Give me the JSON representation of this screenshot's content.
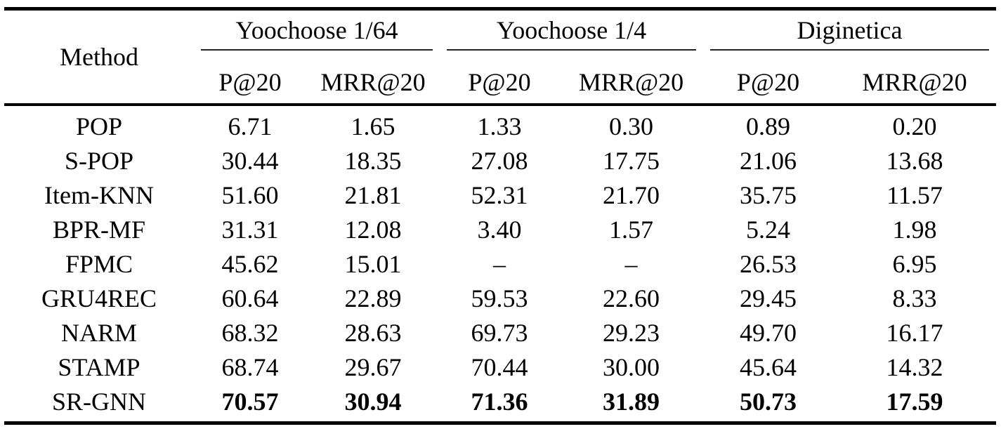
{
  "table": {
    "method_header": "Method",
    "groups": [
      {
        "label": "Yoochoose 1/64"
      },
      {
        "label": "Yoochoose 1/4"
      },
      {
        "label": "Diginetica"
      }
    ],
    "metric_headers": [
      "P@20",
      "MRR@20",
      "P@20",
      "MRR@20",
      "P@20",
      "MRR@20"
    ],
    "rows": [
      {
        "method": "POP",
        "values": [
          "6.71",
          "1.65",
          "1.33",
          "0.30",
          "0.89",
          "0.20"
        ],
        "bold": false
      },
      {
        "method": "S-POP",
        "values": [
          "30.44",
          "18.35",
          "27.08",
          "17.75",
          "21.06",
          "13.68"
        ],
        "bold": false
      },
      {
        "method": "Item-KNN",
        "values": [
          "51.60",
          "21.81",
          "52.31",
          "21.70",
          "35.75",
          "11.57"
        ],
        "bold": false
      },
      {
        "method": "BPR-MF",
        "values": [
          "31.31",
          "12.08",
          "3.40",
          "1.57",
          "5.24",
          "1.98"
        ],
        "bold": false
      },
      {
        "method": "FPMC",
        "values": [
          "45.62",
          "15.01",
          "–",
          "–",
          "26.53",
          "6.95"
        ],
        "bold": false
      },
      {
        "method": "GRU4REC",
        "values": [
          "60.64",
          "22.89",
          "59.53",
          "22.60",
          "29.45",
          "8.33"
        ],
        "bold": false
      },
      {
        "method": "NARM",
        "values": [
          "68.32",
          "28.63",
          "69.73",
          "29.23",
          "49.70",
          "16.17"
        ],
        "bold": false
      },
      {
        "method": "STAMP",
        "values": [
          "68.74",
          "29.67",
          "70.44",
          "30.00",
          "45.64",
          "14.32"
        ],
        "bold": false
      },
      {
        "method": "SR-GNN",
        "values": [
          "70.57",
          "30.94",
          "71.36",
          "31.89",
          "50.73",
          "17.59"
        ],
        "bold": true
      }
    ]
  },
  "chart_data": {
    "type": "table",
    "title": "",
    "column_groups": [
      "Yoochoose 1/64",
      "Yoochoose 1/4",
      "Diginetica"
    ],
    "columns": [
      "Method",
      "Yoochoose 1/64 P@20",
      "Yoochoose 1/64 MRR@20",
      "Yoochoose 1/4 P@20",
      "Yoochoose 1/4 MRR@20",
      "Diginetica P@20",
      "Diginetica MRR@20"
    ],
    "rows": [
      [
        "POP",
        6.71,
        1.65,
        1.33,
        0.3,
        0.89,
        0.2
      ],
      [
        "S-POP",
        30.44,
        18.35,
        27.08,
        17.75,
        21.06,
        13.68
      ],
      [
        "Item-KNN",
        51.6,
        21.81,
        52.31,
        21.7,
        35.75,
        11.57
      ],
      [
        "BPR-MF",
        31.31,
        12.08,
        3.4,
        1.57,
        5.24,
        1.98
      ],
      [
        "FPMC",
        45.62,
        15.01,
        null,
        null,
        26.53,
        6.95
      ],
      [
        "GRU4REC",
        60.64,
        22.89,
        59.53,
        22.6,
        29.45,
        8.33
      ],
      [
        "NARM",
        68.32,
        28.63,
        69.73,
        29.23,
        49.7,
        16.17
      ],
      [
        "STAMP",
        68.74,
        29.67,
        70.44,
        30.0,
        45.64,
        14.32
      ],
      [
        "SR-GNN",
        70.57,
        30.94,
        71.36,
        31.89,
        50.73,
        17.59
      ]
    ],
    "best_row": "SR-GNN",
    "missing_marker": "–"
  }
}
